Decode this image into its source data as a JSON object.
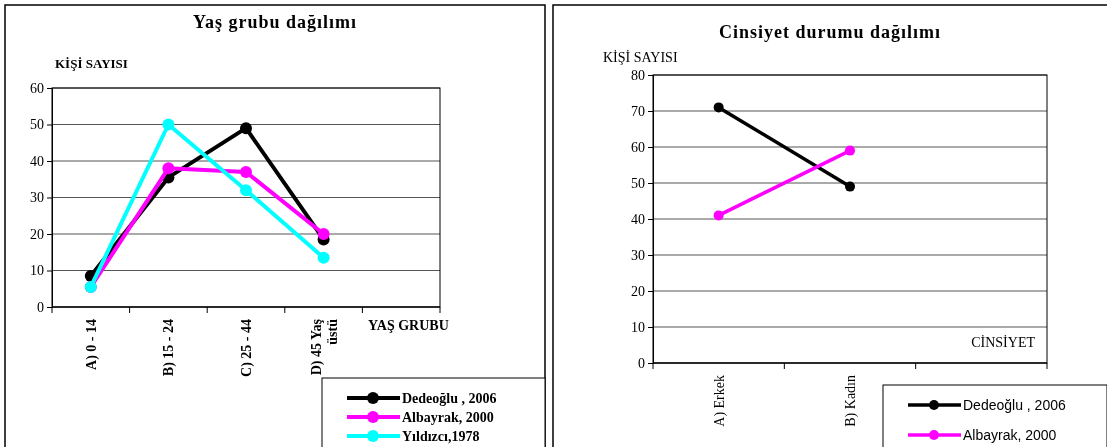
{
  "chart_data": [
    {
      "type": "line",
      "title": "Yaş grubu dağılımı",
      "ylabel": "KİŞİ SAYISI",
      "xlabel": "YAŞ GRUBU",
      "categories": [
        "A) 0 - 14",
        "B) 15 - 24",
        "C) 25 - 44",
        "D) 45 Yaş üstü",
        null
      ],
      "series": [
        {
          "name": "Dedeoğlu , 2006",
          "color": "#000000",
          "values": [
            8.5,
            35.5,
            49,
            18.5,
            null
          ]
        },
        {
          "name": "Albayrak, 2000",
          "color": "#ff00ff",
          "values": [
            5.5,
            38,
            37,
            20,
            null
          ]
        },
        {
          "name": "Yıldızcı,1978",
          "color": "#00ffff",
          "values": [
            5.5,
            50,
            32,
            13.5,
            null
          ]
        }
      ],
      "ylim": [
        0,
        60
      ],
      "yticks": [
        0,
        10,
        20,
        30,
        40,
        50,
        60
      ],
      "grid": "y",
      "legend": "bottom right",
      "marker": "circle"
    },
    {
      "type": "line",
      "title": "Cinsiyet durumu dağılımı",
      "ylabel": "KİŞİ SAYISI",
      "xlabel": "CİNSİYET",
      "categories": [
        "A) Erkek",
        "B) Kadın",
        null
      ],
      "series": [
        {
          "name": "Dedeoğlu , 2006",
          "color": "#000000",
          "values": [
            71,
            49,
            null
          ]
        },
        {
          "name": "Albayrak, 2000",
          "color": "#ff00ff",
          "values": [
            41,
            59,
            null
          ]
        }
      ],
      "ylim": [
        0,
        80
      ],
      "yticks": [
        0,
        10,
        20,
        30,
        40,
        50,
        60,
        70,
        80
      ],
      "grid": "y",
      "legend": "bottom right",
      "marker": "circle"
    }
  ]
}
